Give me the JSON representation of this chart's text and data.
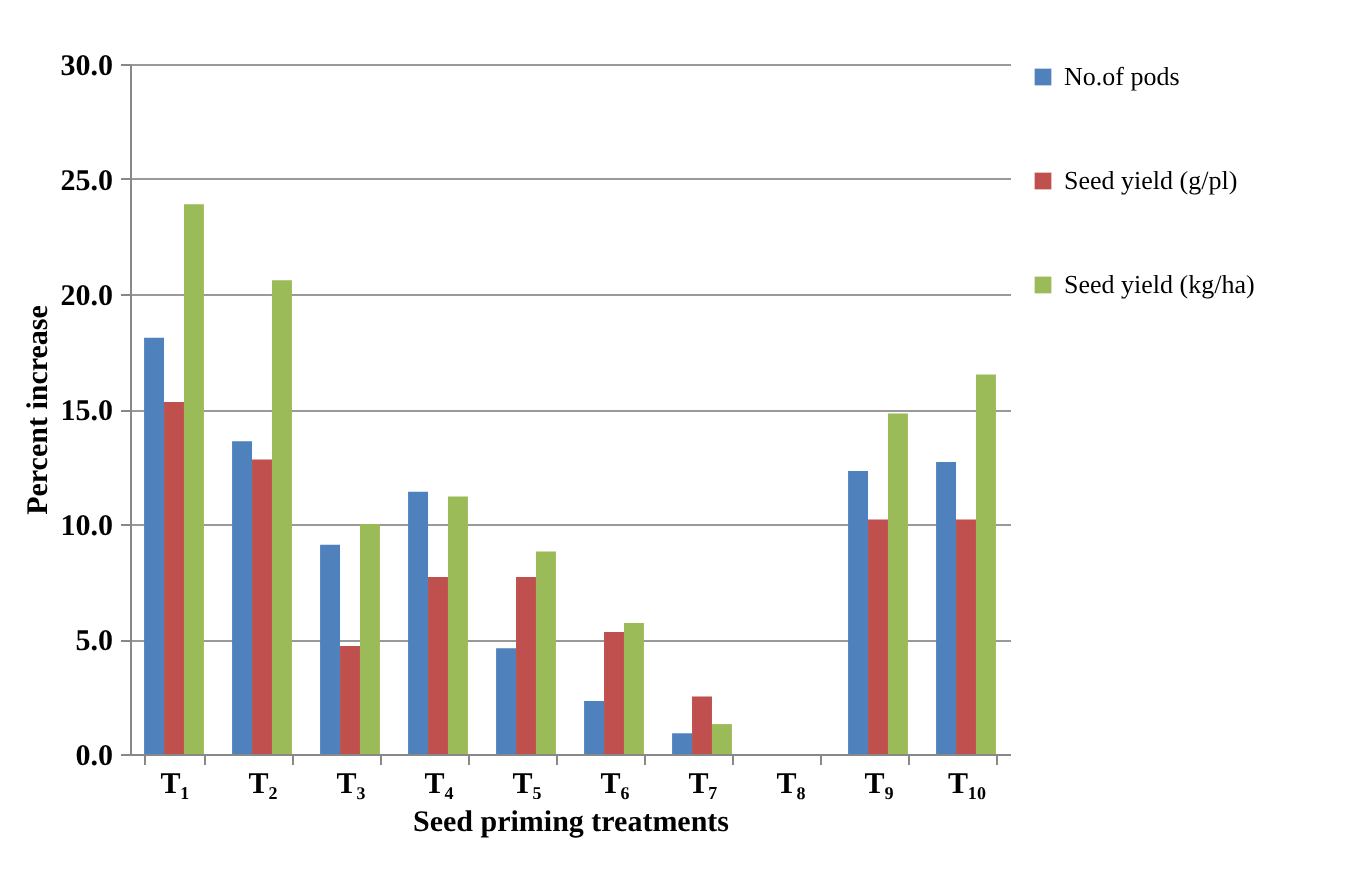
{
  "chart_data": {
    "type": "bar",
    "xlabel": "Seed priming treatments",
    "ylabel": "Percent increase",
    "categories": [
      "T₁",
      "T₂",
      "T₃",
      "T₄",
      "T₅",
      "T₆",
      "T₇",
      "T₈",
      "T₉",
      "T₁₀"
    ],
    "series": [
      {
        "name": "No.of pods",
        "color": "#4f81bd",
        "values": [
          18.1,
          13.6,
          9.1,
          11.4,
          4.6,
          2.3,
          0.9,
          0,
          12.3,
          12.7
        ]
      },
      {
        "name": "Seed yield (g/pl)",
        "color": "#c0504d",
        "values": [
          15.3,
          12.8,
          4.7,
          7.7,
          7.7,
          5.3,
          2.5,
          0,
          10.2,
          10.2
        ]
      },
      {
        "name": "Seed yield (kg/ha)",
        "color": "#9bbb59",
        "values": [
          23.9,
          20.6,
          10.0,
          11.2,
          8.8,
          5.7,
          1.3,
          0,
          14.8,
          16.5
        ]
      }
    ],
    "ylim": [
      0,
      30
    ],
    "yticks": [
      {
        "value": 0,
        "label": "0.0"
      },
      {
        "value": 5,
        "label": "5.0"
      },
      {
        "value": 10,
        "label": "10.0"
      },
      {
        "value": 15,
        "label": "15.0"
      },
      {
        "value": 20,
        "label": "20.0"
      },
      {
        "value": 25,
        "label": "25.0"
      },
      {
        "value": 30,
        "label": "30.0"
      }
    ],
    "grid": "y",
    "legend": "right"
  }
}
